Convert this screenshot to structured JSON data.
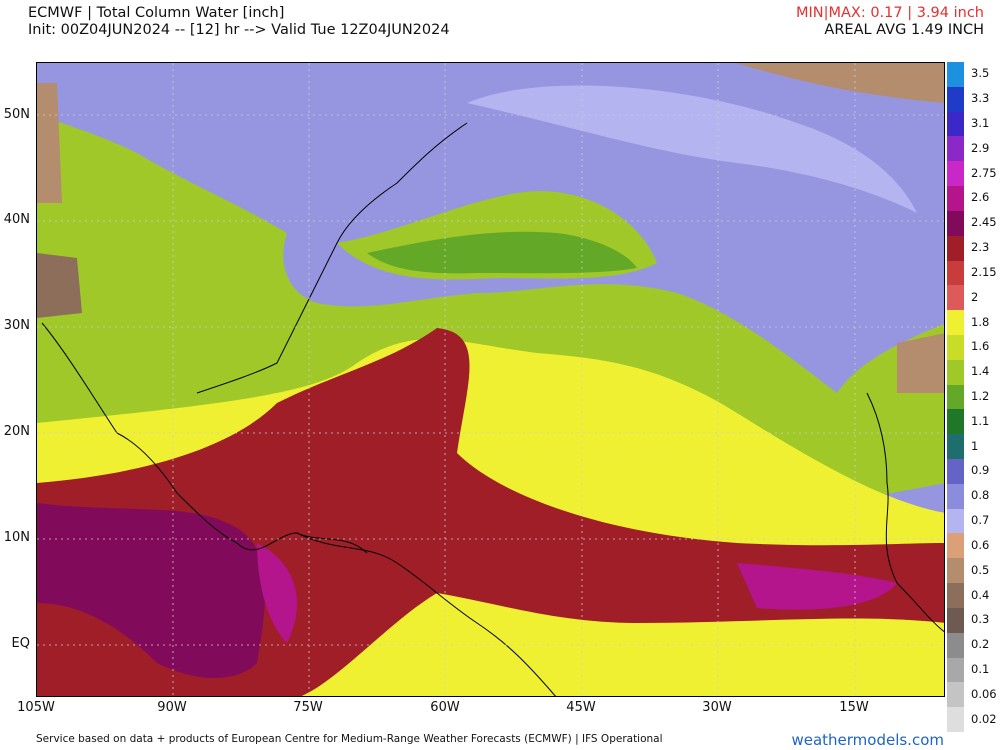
{
  "header": {
    "title": "ECMWF | Total Column Water [inch]",
    "run_info": "Init: 00Z04JUN2024 -- [12] hr --> Valid Tue 12Z04JUN2024",
    "minmax": "MIN|MAX: 0.17 | 3.94 inch",
    "areal_avg": "AREAL AVG 1.49 INCH"
  },
  "map": {
    "lat_labels": [
      "50N",
      "40N",
      "30N",
      "20N",
      "10N",
      "EQ"
    ],
    "lon_labels": [
      "105W",
      "90W",
      "75W",
      "60W",
      "45W",
      "30W",
      "15W"
    ]
  },
  "colorbar": {
    "labels": [
      "3.5",
      "3.3",
      "3.1",
      "2.9",
      "2.75",
      "2.6",
      "2.45",
      "2.3",
      "2.15",
      "2",
      "1.8",
      "1.6",
      "1.4",
      "1.2",
      "1.1",
      "1",
      "0.9",
      "0.8",
      "0.7",
      "0.6",
      "0.5",
      "0.4",
      "0.3",
      "0.2",
      "0.1",
      "0.06",
      "0.02"
    ],
    "colors": [
      "#1e90e0",
      "#1e3cc8",
      "#3c28c8",
      "#8c28c8",
      "#c828c8",
      "#b4148c",
      "#820a5a",
      "#a01e28",
      "#c83c3c",
      "#dc5a5a",
      "#f0f032",
      "#c8dc28",
      "#a0c828",
      "#64a828",
      "#1e7828",
      "#1e6e6e",
      "#6464c8",
      "#8c8cdc",
      "#b4b4f0",
      "#dca078",
      "#b48c6e",
      "#8c6e5a",
      "#6e5a50",
      "#8c8c8c",
      "#a8a8a8",
      "#c4c4c4",
      "#dedede"
    ]
  },
  "footer": {
    "credit": "Service based on data + products of European Centre for Medium-Range Weather Forecasts (ECMWF) | IFS Operational",
    "brand": "weathermodels.com"
  }
}
